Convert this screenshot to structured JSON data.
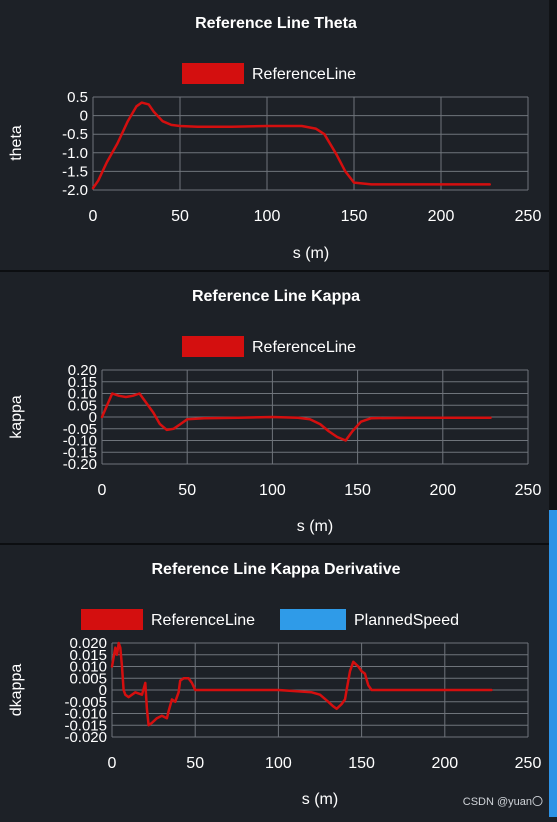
{
  "colors": {
    "background": "#1d2127",
    "reference_line": "#d40f0f",
    "planned_speed": "#2f9be8",
    "grid": "#6f747b"
  },
  "watermark": "CSDN @yuan〇",
  "chart_data": [
    {
      "type": "line",
      "title": "Reference Line Theta",
      "xlabel": "s (m)",
      "ylabel": "theta",
      "xlim": [
        0,
        250
      ],
      "ylim": [
        -2.0,
        0.5
      ],
      "xticks": [
        0,
        50,
        100,
        150,
        200,
        250
      ],
      "yticks": [
        0.5,
        0,
        -0.5,
        -1.0,
        -1.5,
        -2.0
      ],
      "ytick_labels": [
        "0.5",
        "0",
        "-0.5",
        "-1.0",
        "-1.5",
        "-2.0"
      ],
      "grid": true,
      "legend_position": "top-center",
      "series": [
        {
          "name": "ReferenceLine",
          "color": "#d40f0f",
          "x": [
            0,
            3,
            8,
            14,
            20,
            25,
            28,
            32,
            35,
            40,
            45,
            50,
            60,
            80,
            100,
            120,
            128,
            133,
            140,
            145,
            150,
            160,
            180,
            200,
            228
          ],
          "y": [
            -1.95,
            -1.75,
            -1.25,
            -0.75,
            -0.15,
            0.25,
            0.35,
            0.3,
            0.1,
            -0.15,
            -0.25,
            -0.28,
            -0.3,
            -0.3,
            -0.28,
            -0.28,
            -0.35,
            -0.5,
            -1.05,
            -1.5,
            -1.8,
            -1.85,
            -1.85,
            -1.85,
            -1.85
          ]
        }
      ]
    },
    {
      "type": "line",
      "title": "Reference Line Kappa",
      "xlabel": "s (m)",
      "ylabel": "kappa",
      "xlim": [
        0,
        250
      ],
      "ylim": [
        -0.2,
        0.2
      ],
      "xticks": [
        0,
        50,
        100,
        150,
        200,
        250
      ],
      "yticks": [
        0.2,
        0.15,
        0.1,
        0.05,
        0,
        -0.05,
        -0.1,
        -0.15,
        -0.2
      ],
      "ytick_labels": [
        "0.20",
        "0.15",
        "0.10",
        "0.05",
        "0",
        "-0.05",
        "-0.10",
        "-0.15",
        "-0.20"
      ],
      "grid": true,
      "legend_position": "top-center",
      "series": [
        {
          "name": "ReferenceLine",
          "color": "#d40f0f",
          "x": [
            0,
            3,
            6,
            10,
            14,
            18,
            22,
            26,
            30,
            34,
            38,
            42,
            46,
            50,
            60,
            80,
            100,
            115,
            122,
            128,
            133,
            138,
            143,
            147,
            152,
            158,
            180,
            200,
            228
          ],
          "y": [
            0.0,
            0.05,
            0.1,
            0.09,
            0.085,
            0.09,
            0.1,
            0.06,
            0.02,
            -0.03,
            -0.055,
            -0.05,
            -0.03,
            -0.01,
            -0.005,
            -0.003,
            0.0,
            -0.003,
            -0.01,
            -0.03,
            -0.06,
            -0.085,
            -0.1,
            -0.06,
            -0.02,
            -0.005,
            -0.003,
            -0.003,
            -0.003
          ]
        }
      ]
    },
    {
      "type": "line",
      "title": "Reference Line Kappa Derivative",
      "xlabel": "s (m)",
      "ylabel": "dkappa",
      "xlim": [
        0,
        250
      ],
      "ylim": [
        -0.02,
        0.02
      ],
      "xticks": [
        0,
        50,
        100,
        150,
        200,
        250
      ],
      "yticks": [
        0.02,
        0.015,
        0.01,
        0.005,
        0,
        -0.005,
        -0.01,
        -0.015,
        -0.02
      ],
      "ytick_labels": [
        "0.020",
        "0.015",
        "0.010",
        "0.005",
        "0",
        "-0.005",
        "-0.010",
        "-0.015",
        "-0.020"
      ],
      "grid": true,
      "legend_position": "top-center",
      "series": [
        {
          "name": "ReferenceLine",
          "color": "#d40f0f",
          "x": [
            0,
            2,
            3,
            4,
            5,
            6,
            7,
            8,
            10,
            14,
            18,
            20,
            21,
            22,
            24,
            27,
            30,
            33,
            34,
            36,
            38,
            40,
            41,
            43,
            46,
            48,
            50,
            60,
            80,
            100,
            120,
            125,
            130,
            133,
            135,
            138,
            140,
            141,
            143,
            145,
            148,
            150,
            152,
            154,
            156,
            160,
            180,
            200,
            228
          ],
          "y": [
            0.01,
            0.018,
            0.015,
            0.02,
            0.018,
            0.01,
            0.0,
            -0.002,
            -0.003,
            -0.001,
            -0.002,
            0.003,
            -0.008,
            -0.015,
            -0.014,
            -0.012,
            -0.011,
            -0.012,
            -0.009,
            -0.004,
            -0.005,
            -0.001,
            0.004,
            0.005,
            0.005,
            0.003,
            0.0,
            0.0,
            0.0,
            0.0,
            -0.001,
            -0.002,
            -0.005,
            -0.007,
            -0.008,
            -0.006,
            -0.004,
            0.0,
            0.008,
            0.012,
            0.01,
            0.008,
            0.007,
            0.002,
            0.0,
            0.0,
            0.0,
            0.0,
            0.0
          ]
        },
        {
          "name": "PlannedSpeed",
          "color": "#2f9be8",
          "x": [],
          "y": []
        }
      ]
    }
  ]
}
